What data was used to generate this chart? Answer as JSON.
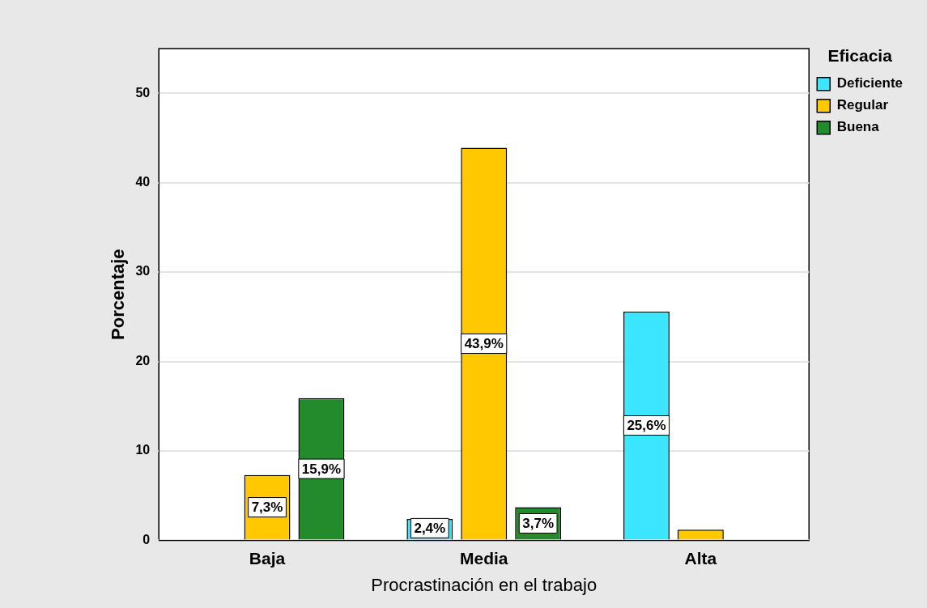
{
  "chart_data": {
    "type": "bar",
    "xlabel": "Procrastinación en el trabajo",
    "ylabel": "Porcentaje",
    "legend_title": "Eficacia",
    "legend": "top right",
    "grid": "y",
    "categories": [
      "Baja",
      "Media",
      "Alta"
    ],
    "ylim": [
      0,
      55
    ],
    "yticks": [
      0,
      10,
      20,
      30,
      40,
      50
    ],
    "series": [
      {
        "name": "Deficiente",
        "color": "#3de6ff",
        "values": [
          null,
          2.4,
          25.6
        ],
        "value_labels": [
          null,
          "2,4%",
          "25,6%"
        ]
      },
      {
        "name": "Regular",
        "color": "#ffc800",
        "values": [
          7.3,
          43.9,
          1.2
        ],
        "value_labels": [
          "7,3%",
          "43,9%",
          null
        ]
      },
      {
        "name": "Buena",
        "color": "#238b2b",
        "values": [
          15.9,
          3.7,
          null
        ],
        "value_labels": [
          "15,9%",
          "3,7%",
          null
        ]
      }
    ]
  }
}
